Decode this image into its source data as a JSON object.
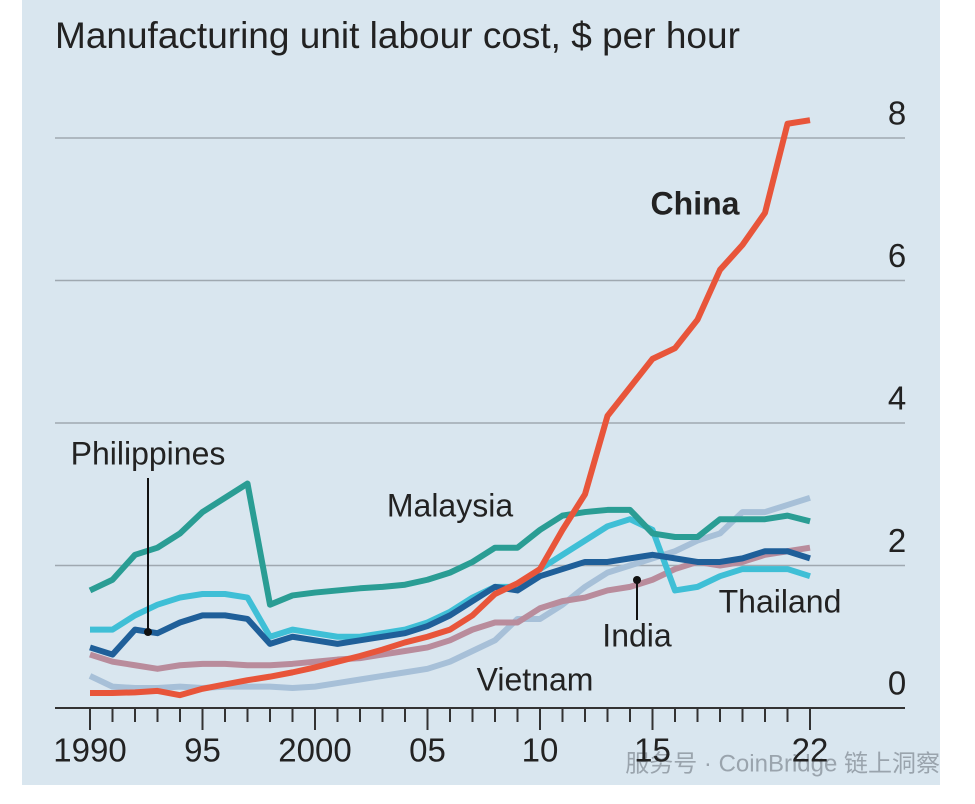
{
  "chart_data": {
    "type": "line",
    "title": "Manufacturing unit labour cost, $ per hour",
    "x": [
      1990,
      1991,
      1992,
      1993,
      1994,
      1995,
      1996,
      1997,
      1998,
      1999,
      2000,
      2001,
      2002,
      2003,
      2004,
      2005,
      2006,
      2007,
      2008,
      2009,
      2010,
      2011,
      2012,
      2013,
      2014,
      2015,
      2016,
      2017,
      2018,
      2019,
      2020,
      2021,
      2022
    ],
    "series": [
      {
        "name": "Vietnam",
        "color": "#a7c0d8",
        "values": [
          0.45,
          0.3,
          0.28,
          0.28,
          0.3,
          0.28,
          0.3,
          0.3,
          0.3,
          0.28,
          0.3,
          0.35,
          0.4,
          0.45,
          0.5,
          0.55,
          0.65,
          0.8,
          0.95,
          1.25,
          1.25,
          1.45,
          1.7,
          1.9,
          2.0,
          2.1,
          2.2,
          2.35,
          2.45,
          2.75,
          2.75,
          2.85,
          2.95
        ]
      },
      {
        "name": "India",
        "color": "#b98c9c",
        "values": [
          0.75,
          0.65,
          0.6,
          0.55,
          0.6,
          0.62,
          0.62,
          0.6,
          0.6,
          0.62,
          0.65,
          0.68,
          0.7,
          0.75,
          0.8,
          0.85,
          0.95,
          1.1,
          1.2,
          1.2,
          1.4,
          1.5,
          1.55,
          1.65,
          1.7,
          1.8,
          1.95,
          2.05,
          2.0,
          2.05,
          2.15,
          2.2,
          2.25
        ]
      },
      {
        "name": "Thailand",
        "color": "#3fbfd6",
        "values": [
          1.1,
          1.1,
          1.3,
          1.45,
          1.55,
          1.6,
          1.6,
          1.55,
          1.0,
          1.1,
          1.05,
          1.0,
          1.0,
          1.05,
          1.1,
          1.2,
          1.35,
          1.55,
          1.7,
          1.7,
          1.95,
          2.15,
          2.35,
          2.55,
          2.65,
          2.5,
          1.65,
          1.7,
          1.85,
          1.95,
          1.95,
          1.95,
          1.85
        ]
      },
      {
        "name": "Philippines",
        "color": "#1f5f99",
        "values": [
          0.85,
          0.75,
          1.1,
          1.05,
          1.2,
          1.3,
          1.3,
          1.25,
          0.9,
          1.0,
          0.95,
          0.9,
          0.95,
          1.0,
          1.05,
          1.15,
          1.3,
          1.5,
          1.7,
          1.65,
          1.85,
          1.95,
          2.05,
          2.05,
          2.1,
          2.15,
          2.1,
          2.05,
          2.05,
          2.1,
          2.2,
          2.2,
          2.1
        ]
      },
      {
        "name": "Malaysia",
        "color": "#2a9d94",
        "values": [
          1.65,
          1.8,
          2.15,
          2.25,
          2.45,
          2.75,
          2.95,
          3.15,
          1.45,
          1.58,
          1.62,
          1.65,
          1.68,
          1.7,
          1.73,
          1.8,
          1.9,
          2.05,
          2.25,
          2.25,
          2.5,
          2.7,
          2.75,
          2.78,
          2.78,
          2.45,
          2.4,
          2.4,
          2.65,
          2.65,
          2.65,
          2.7,
          2.62
        ]
      },
      {
        "name": "China",
        "color": "#e8553a",
        "values": [
          0.21,
          0.21,
          0.22,
          0.24,
          0.18,
          0.27,
          0.33,
          0.39,
          0.44,
          0.5,
          0.57,
          0.65,
          0.73,
          0.82,
          0.92,
          1.0,
          1.1,
          1.3,
          1.6,
          1.75,
          1.95,
          2.5,
          3.0,
          4.1,
          4.5,
          4.9,
          5.05,
          5.45,
          6.15,
          6.5,
          6.95,
          8.2,
          8.25
        ]
      }
    ],
    "xlim": [
      1990,
      2022
    ],
    "xticks": [
      1990,
      {
        "value": 1995,
        "label": "95"
      },
      2000,
      {
        "value": 2005,
        "label": "05"
      },
      {
        "value": 2010,
        "label": "10"
      },
      {
        "value": 2015,
        "label": "15"
      },
      {
        "value": 2022,
        "label": "22"
      }
    ],
    "x_minor_ticks": [
      1991,
      1992,
      1993,
      1994,
      1996,
      1997,
      1998,
      1999,
      2001,
      2002,
      2003,
      2004,
      2006,
      2007,
      2008,
      2009,
      2011,
      2012,
      2013,
      2014,
      2016,
      2017,
      2018,
      2019,
      2020,
      2021
    ],
    "ylim": [
      0,
      8
    ],
    "yticks": [
      0,
      2,
      4,
      6,
      8
    ],
    "grid": true
  },
  "watermark": "服务号 · CoinBridge 链上洞察"
}
